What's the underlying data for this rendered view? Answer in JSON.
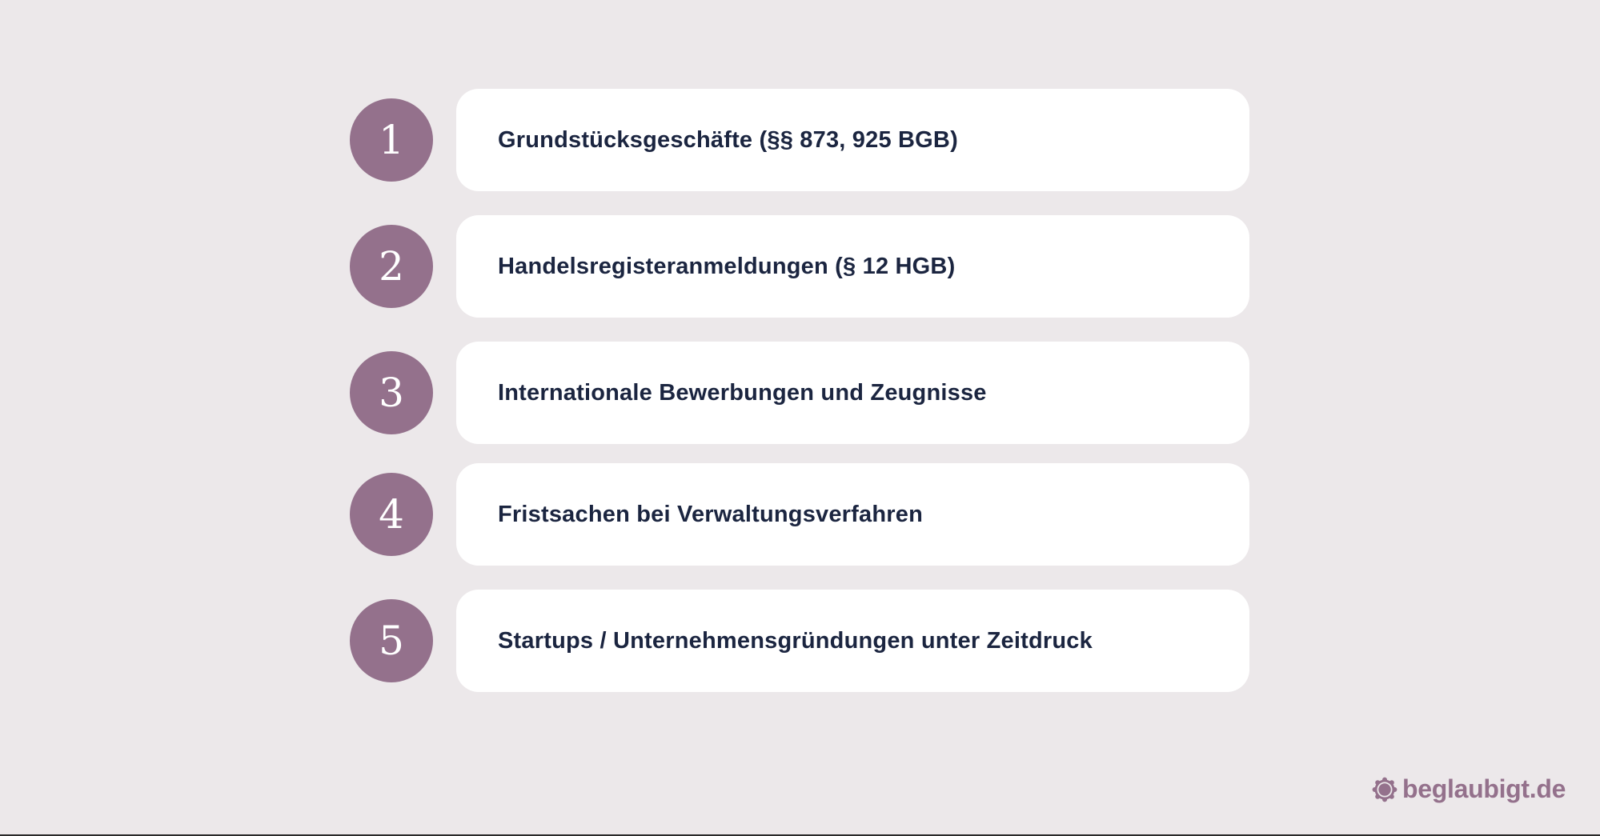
{
  "colors": {
    "background": "#ece8ea",
    "accent": "#94718c",
    "card": "#ffffff",
    "text": "#1b2540"
  },
  "items": [
    {
      "number": "1",
      "text": "Grundstücksgeschäfte (§§ 873, 925 BGB)"
    },
    {
      "number": "2",
      "text": "Handelsregisteranmeldungen (§ 12 HGB)"
    },
    {
      "number": "3",
      "text": "Internationale Bewerbungen und Zeugnisse"
    },
    {
      "number": "4",
      "text": "Fristsachen bei Verwaltungsverfahren"
    },
    {
      "number": "5",
      "text": "Startups / Unternehmensgründungen unter Zeitdruck"
    }
  ],
  "brand": {
    "icon": "seal-logo-icon",
    "text": "beglaubigt.de"
  }
}
